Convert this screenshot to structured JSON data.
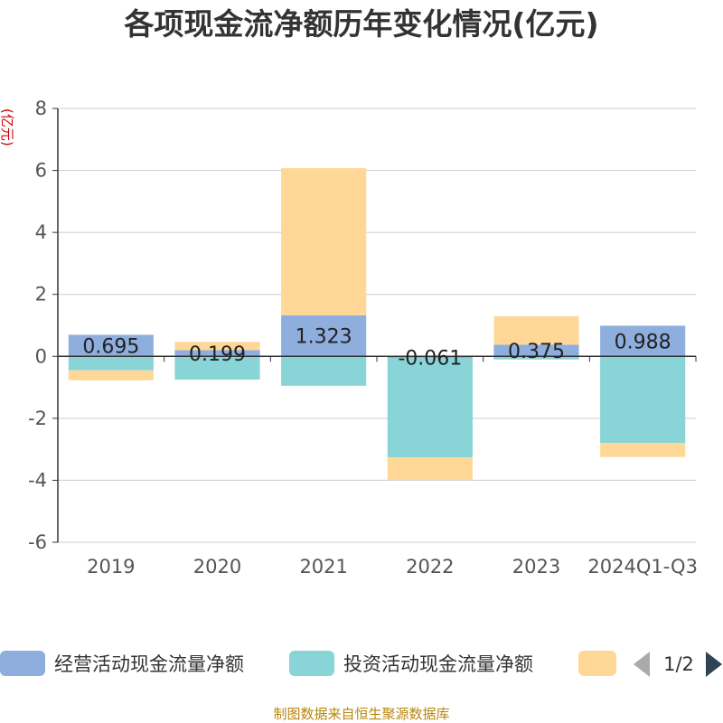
{
  "chart_data": {
    "type": "bar",
    "stacked": true,
    "title": "各项现金流净额历年变化情况(亿元)",
    "ylabel": "(亿元)",
    "ylim": [
      -6,
      8
    ],
    "yticks": [
      8,
      6,
      4,
      2,
      0,
      -2,
      -4,
      -6
    ],
    "categories": [
      "2019",
      "2020",
      "2021",
      "2022",
      "2023",
      "2024Q1-Q3"
    ],
    "series": [
      {
        "name": "经营活动现金流量净额",
        "color": "#8eaedd",
        "values": [
          0.695,
          0.199,
          1.323,
          -0.061,
          0.375,
          0.988
        ],
        "labels": [
          "0.695",
          "0.199",
          "1.323",
          "-0.061",
          "0.375",
          "0.988"
        ]
      },
      {
        "name": "投资活动现金流量净额",
        "color": "#88d4d6",
        "values": [
          -0.45,
          -0.75,
          -0.95,
          -3.2,
          -0.1,
          -2.8
        ]
      },
      {
        "name": "",
        "color": "#ffd898",
        "values": [
          -0.32,
          0.27,
          4.75,
          -0.73,
          0.92,
          -0.45
        ]
      }
    ],
    "legend": {
      "position": "bottom",
      "page_indicator": "1/2"
    },
    "source": "制图数据来自恒生聚源数据库"
  }
}
